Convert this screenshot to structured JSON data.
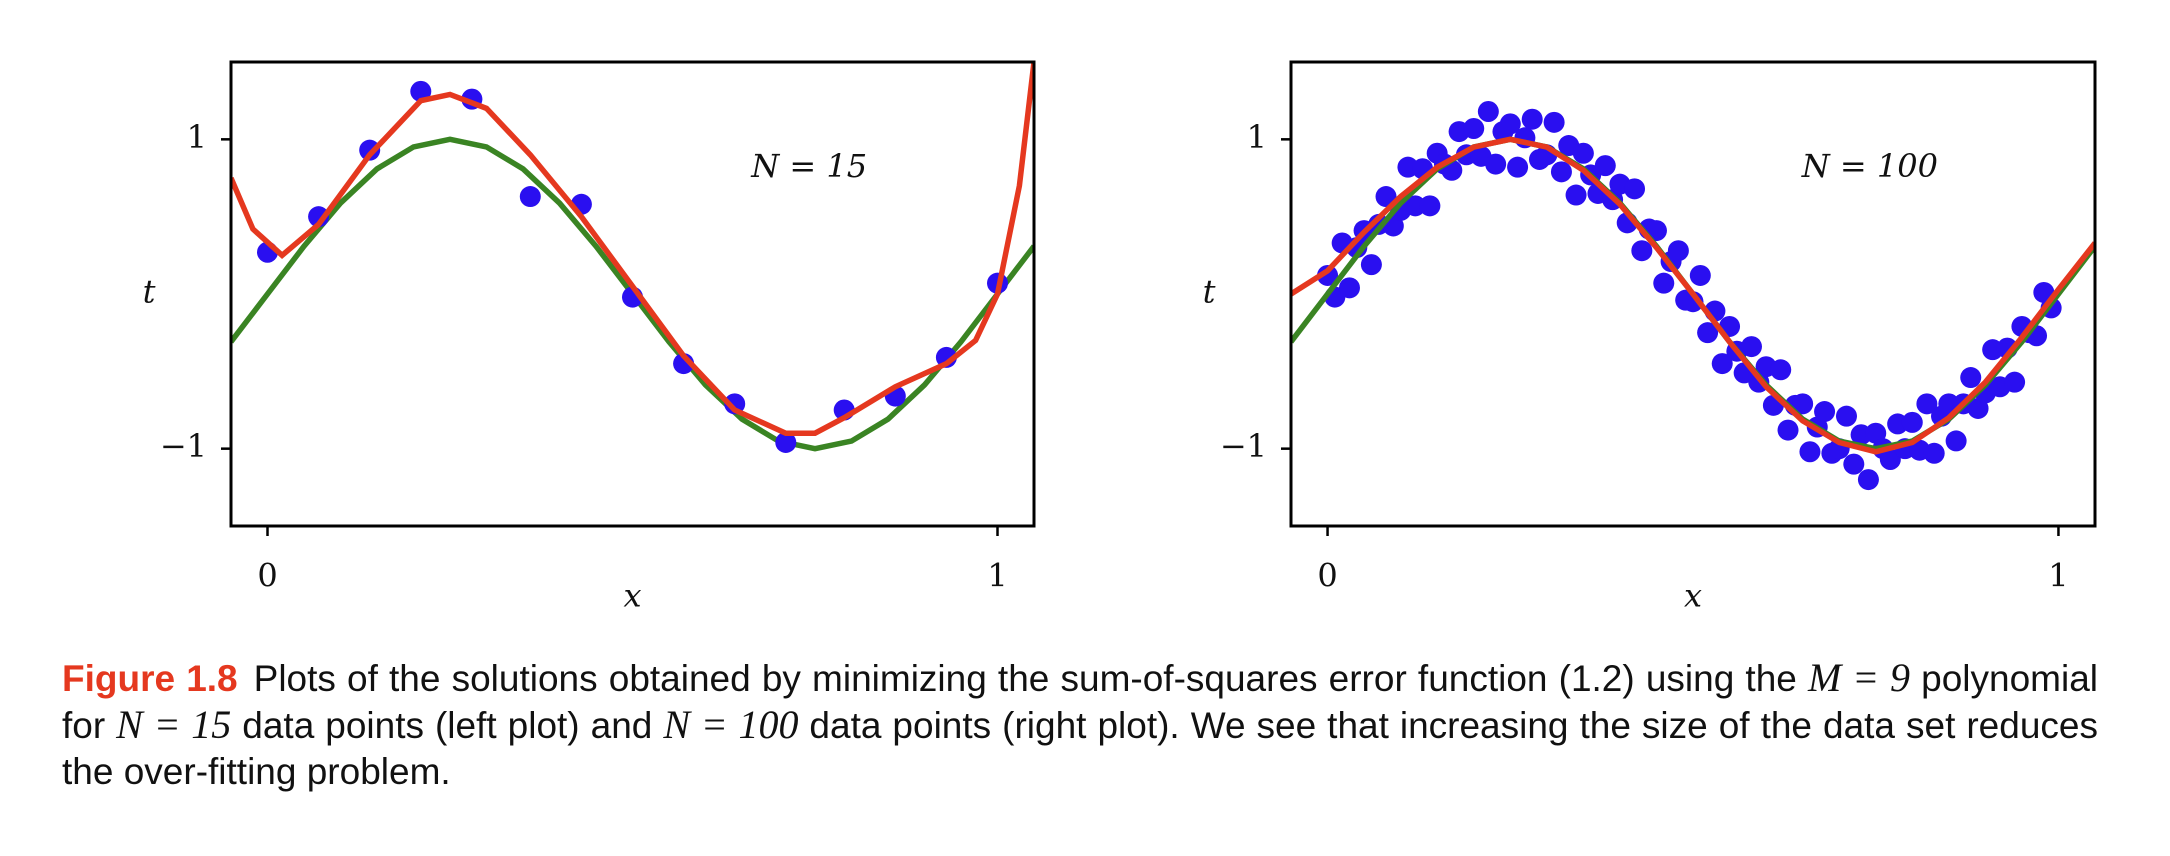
{
  "chart_data": [
    {
      "type": "scatter",
      "annotation": "N = 15",
      "xlabel": "x",
      "ylabel": "t",
      "xlim": [
        -0.05,
        1.05
      ],
      "ylim": [
        -1.5,
        1.5
      ],
      "xticks": [
        0,
        1
      ],
      "yticks": [
        {
          "value": -1,
          "label": "−1"
        },
        1
      ],
      "series": [
        {
          "type": "line",
          "color": "#3a8423",
          "x": [
            -0.05,
            0,
            0.05,
            0.1,
            0.15,
            0.2,
            0.25,
            0.3,
            0.35,
            0.4,
            0.45,
            0.5,
            0.55,
            0.6,
            0.65,
            0.7,
            0.75,
            0.8,
            0.85,
            0.9,
            0.95,
            1,
            1.05
          ],
          "values": [
            -0.309,
            0,
            0.309,
            0.588,
            0.809,
            0.951,
            1,
            0.951,
            0.809,
            0.588,
            0.309,
            0,
            -0.309,
            -0.588,
            -0.809,
            -0.951,
            -1,
            -0.951,
            -0.809,
            -0.588,
            -0.309,
            0,
            0.309
          ]
        },
        {
          "type": "scatter",
          "color": "#2a0ff0",
          "x": [
            0,
            0.07,
            0.14,
            0.21,
            0.28,
            0.36,
            0.43,
            0.5,
            0.57,
            0.64,
            0.71,
            0.79,
            0.86,
            0.93,
            1.0
          ],
          "values": [
            0.27,
            0.5,
            0.93,
            1.31,
            1.26,
            0.63,
            0.58,
            -0.02,
            -0.45,
            -0.71,
            -0.96,
            -0.75,
            -0.66,
            -0.41,
            0.07
          ]
        },
        {
          "type": "line",
          "color": "#e5381f",
          "x": [
            -0.05,
            -0.02,
            0.02,
            0.07,
            0.14,
            0.21,
            0.25,
            0.3,
            0.36,
            0.43,
            0.5,
            0.57,
            0.64,
            0.71,
            0.75,
            0.79,
            0.86,
            0.93,
            0.97,
            1.0,
            1.03,
            1.05
          ],
          "values": [
            0.75,
            0.42,
            0.25,
            0.45,
            0.9,
            1.25,
            1.29,
            1.2,
            0.9,
            0.5,
            0.05,
            -0.4,
            -0.75,
            -0.9,
            -0.9,
            -0.8,
            -0.6,
            -0.45,
            -0.3,
            0.0,
            0.7,
            1.5
          ]
        }
      ]
    },
    {
      "type": "scatter",
      "annotation": "N = 100",
      "xlabel": "x",
      "ylabel": "t",
      "xlim": [
        -0.05,
        1.05
      ],
      "ylim": [
        -1.5,
        1.5
      ],
      "xticks": [
        0,
        1
      ],
      "yticks": [
        {
          "value": -1,
          "label": "−1"
        },
        1
      ],
      "series": [
        {
          "type": "scatter",
          "color": "#2a0ff0",
          "x": [
            0,
            0.01,
            0.02,
            0.03,
            0.04,
            0.05,
            0.06,
            0.07,
            0.08,
            0.09,
            0.1,
            0.11,
            0.12,
            0.13,
            0.14,
            0.15,
            0.16,
            0.17,
            0.18,
            0.19,
            0.2,
            0.21,
            0.22,
            0.23,
            0.24,
            0.25,
            0.26,
            0.27,
            0.28,
            0.29,
            0.3,
            0.31,
            0.32,
            0.33,
            0.34,
            0.35,
            0.36,
            0.37,
            0.38,
            0.39,
            0.4,
            0.41,
            0.42,
            0.43,
            0.44,
            0.45,
            0.46,
            0.47,
            0.48,
            0.49,
            0.5,
            0.51,
            0.52,
            0.53,
            0.54,
            0.55,
            0.56,
            0.57,
            0.58,
            0.59,
            0.6,
            0.61,
            0.62,
            0.63,
            0.64,
            0.65,
            0.66,
            0.67,
            0.68,
            0.69,
            0.7,
            0.71,
            0.72,
            0.73,
            0.74,
            0.75,
            0.76,
            0.77,
            0.78,
            0.79,
            0.8,
            0.81,
            0.82,
            0.83,
            0.84,
            0.85,
            0.86,
            0.87,
            0.88,
            0.89,
            0.9,
            0.91,
            0.92,
            0.93,
            0.94,
            0.95,
            0.96,
            0.97,
            0.98,
            0.99
          ],
          "values": [
            0.12,
            -0.02,
            0.33,
            0.04,
            0.3,
            0.41,
            0.19,
            0.45,
            0.63,
            0.44,
            0.54,
            0.82,
            0.57,
            0.81,
            0.57,
            0.91,
            0.84,
            0.8,
            1.05,
            0.9,
            1.07,
            0.89,
            1.18,
            0.84,
            1.05,
            1.1,
            0.82,
            1.01,
            1.13,
            0.87,
            0.9,
            1.11,
            0.79,
            0.96,
            0.64,
            0.91,
            0.77,
            0.65,
            0.83,
            0.61,
            0.71,
            0.46,
            0.68,
            0.28,
            0.42,
            0.41,
            0.07,
            0.21,
            0.28,
            -0.04,
            -0.05,
            0.12,
            -0.25,
            -0.11,
            -0.45,
            -0.21,
            -0.37,
            -0.51,
            -0.34,
            -0.57,
            -0.47,
            -0.72,
            -0.49,
            -0.88,
            -0.72,
            -0.71,
            -1.02,
            -0.86,
            -0.76,
            -1.03,
            -1.0,
            -0.79,
            -1.1,
            -0.91,
            -1.2,
            -0.9,
            -1.0,
            -1.07,
            -0.84,
            -1.0,
            -0.83,
            -1.01,
            -0.71,
            -1.03,
            -0.79,
            -0.71,
            -0.95,
            -0.71,
            -0.54,
            -0.74,
            -0.64,
            -0.36,
            -0.6,
            -0.35,
            -0.57,
            -0.21,
            -0.25,
            -0.27,
            0.01,
            -0.09
          ]
        },
        {
          "type": "line",
          "color": "#3a8423",
          "x": [
            -0.05,
            0,
            0.05,
            0.1,
            0.15,
            0.2,
            0.25,
            0.3,
            0.35,
            0.4,
            0.45,
            0.5,
            0.55,
            0.6,
            0.65,
            0.7,
            0.75,
            0.8,
            0.85,
            0.9,
            0.95,
            1,
            1.05
          ],
          "values": [
            -0.309,
            0,
            0.309,
            0.588,
            0.809,
            0.951,
            1,
            0.951,
            0.809,
            0.588,
            0.309,
            0,
            -0.309,
            -0.588,
            -0.809,
            -0.951,
            -1,
            -0.951,
            -0.809,
            -0.588,
            -0.309,
            0,
            0.309
          ]
        },
        {
          "type": "line",
          "color": "#e5381f",
          "x": [
            -0.05,
            0,
            0.05,
            0.1,
            0.15,
            0.2,
            0.25,
            0.3,
            0.35,
            0.4,
            0.45,
            0.5,
            0.55,
            0.6,
            0.65,
            0.7,
            0.75,
            0.8,
            0.85,
            0.9,
            0.95,
            1,
            1.05
          ],
          "values": [
            0.0,
            0.15,
            0.4,
            0.63,
            0.82,
            0.95,
            1.0,
            0.95,
            0.8,
            0.58,
            0.3,
            0.0,
            -0.31,
            -0.6,
            -0.82,
            -0.96,
            -1.02,
            -0.96,
            -0.8,
            -0.57,
            -0.28,
            0.03,
            0.33
          ]
        }
      ]
    }
  ],
  "caption": {
    "label": "Figure 1.8",
    "parts": [
      {
        "text": "Plots of the solutions obtained by minimizing the sum-of-squares error function (1.2) using the "
      },
      {
        "text": "M = 9",
        "math": true
      },
      {
        "text": " polynomial for "
      },
      {
        "text": "N = 15",
        "math": true
      },
      {
        "text": " data points (left plot) and "
      },
      {
        "text": "N = 100",
        "math": true
      },
      {
        "text": " data points (right plot). We see that increasing the size of the data set reduces the over-fitting problem."
      }
    ]
  }
}
